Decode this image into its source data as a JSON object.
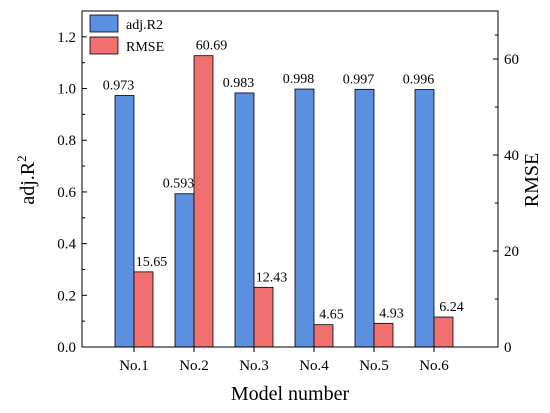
{
  "chart_data": {
    "type": "bar",
    "categories": [
      "No.1",
      "No.2",
      "No.3",
      "No.4",
      "No.5",
      "No.6"
    ],
    "series": [
      {
        "name": "adj.R2",
        "axis": "left",
        "color": "#5b8fe0",
        "values": [
          0.973,
          0.593,
          0.983,
          0.998,
          0.997,
          0.996
        ],
        "labels": [
          "0.973",
          "0.593",
          "0.983",
          "0.998",
          "0.997",
          "0.996"
        ]
      },
      {
        "name": "RMSE",
        "axis": "right",
        "color": "#f07070",
        "values": [
          15.65,
          60.69,
          12.43,
          4.65,
          4.93,
          6.24
        ],
        "labels": [
          "15.65",
          "60.69",
          "12.43",
          "4.65",
          "4.93",
          "6.24"
        ]
      }
    ],
    "xlabel": "Model number",
    "ylabel_left_base": "adj.R",
    "ylabel_left_sup": "2",
    "ylabel_right": "RMSE",
    "ylim_left": [
      0,
      1.3
    ],
    "ylim_right": [
      0,
      70
    ],
    "yticks_left": [
      0.0,
      0.2,
      0.4,
      0.6,
      0.8,
      1.0,
      1.2
    ],
    "yticks_left_labels": [
      "0.0",
      "0.2",
      "0.4",
      "0.6",
      "0.8",
      "1.0",
      "1.2"
    ],
    "yticks_right": [
      0,
      20,
      40,
      60
    ],
    "yticks_right_labels": [
      "0",
      "20",
      "40",
      "60"
    ],
    "legend_position": "top-left",
    "grid": false
  }
}
